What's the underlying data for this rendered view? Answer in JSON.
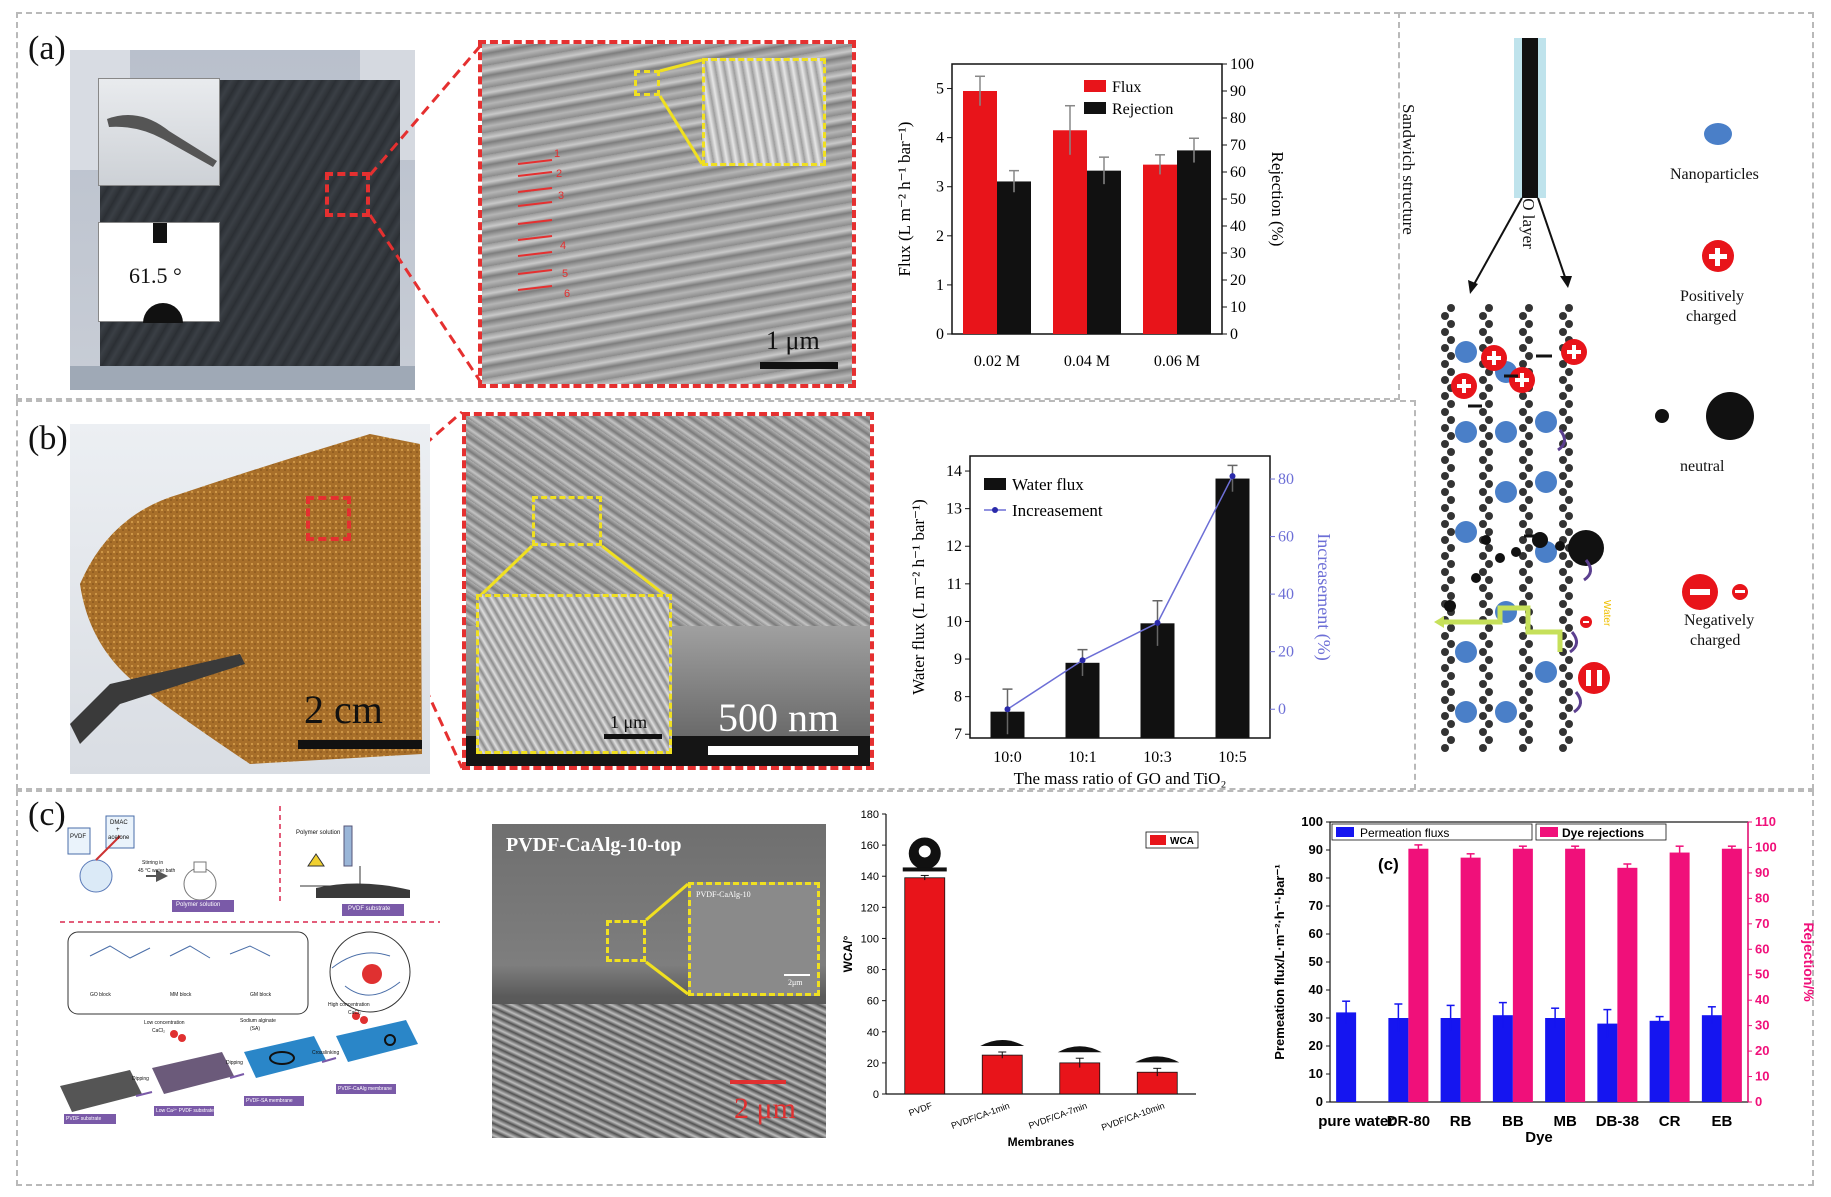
{
  "panels": {
    "a_label": "(a)",
    "b_label": "(b)",
    "c_label": "(c)"
  },
  "panel_a": {
    "contact_angle": "61.5 °",
    "scale_bar": "1 μm",
    "layer_numbers": [
      "1",
      "2",
      "3",
      "4",
      "5",
      "6"
    ]
  },
  "panel_b": {
    "photo_scale": "2 cm",
    "sem_scale": "500 nm",
    "inset_scale": "1 μm"
  },
  "panel_c": {
    "sem_title": "PVDF-CaAlg-10-top",
    "inset_title": "PVDF-CaAlg-10",
    "inset_scale": "2μm",
    "sem_scale": "2 μm",
    "schematic": {
      "pvdf": "PVDF",
      "dmac": "DMAC",
      "plus": "+",
      "acetone": "acetone",
      "stirring": "Stirring in",
      "bath": "45 °C water bath",
      "polymer_solution_label": "Polymer solution",
      "polymer_solution_top": "Polymer solution",
      "pvdf_substrate": "PVDF substrate",
      "go_block": "GO block",
      "mm_block": "MM block",
      "gm_block": "GM block",
      "low_conc": "Low concentration",
      "cacl2": "CaCl₂",
      "dipping": "Dipping",
      "sodium_alginate": "Sodium alginate",
      "sa": "(SA)",
      "dipping2": "Dipping",
      "high_conc": "High concentration",
      "cacl2_2": "CaCl₂",
      "crosslinking": "Crosslinking",
      "stage1": "PVDF substrate",
      "stage2": "Low Ca²⁺ PVDF substrate",
      "stage3": "PVDF-SA membrane",
      "stage4": "PVDF-CaAlg membrane"
    }
  },
  "mechanism": {
    "sandwich": "Sandwich structure",
    "go_layer": "GO layer",
    "nanoparticles": "Nanoparticles",
    "positively": "Positively",
    "positively2": "charged",
    "neutral": "neutral",
    "negatively": "Negatively",
    "negatively2": "charged",
    "water": "Water"
  },
  "colors": {
    "red": "#e8141a",
    "black": "#111111",
    "blue_line": "#6d6fd6",
    "magenta": "#f0107a",
    "blue_bar": "#1515f0",
    "np_blue": "#4a7fc8"
  },
  "chart_data": [
    {
      "id": "a-flux-rejection",
      "type": "bar",
      "categories": [
        "0.02 M",
        "0.04 M",
        "0.06 M"
      ],
      "series": [
        {
          "name": "Flux",
          "axis": "left",
          "values": [
            4.95,
            4.15,
            3.45
          ],
          "errors": [
            0.3,
            0.5,
            0.2
          ]
        },
        {
          "name": "Rejection",
          "axis": "right",
          "values": [
            56.5,
            60.5,
            68
          ],
          "errors": [
            4,
            5,
            4.5
          ]
        }
      ],
      "ylabel": "Flux (L m⁻² h⁻¹ bar⁻¹)",
      "y2label": "Rejection (%)",
      "ylim": [
        0,
        5.5
      ],
      "y2lim": [
        0,
        100
      ],
      "yticks": [
        0,
        1,
        2,
        3,
        4,
        5
      ],
      "y2ticks": [
        0,
        10,
        20,
        30,
        40,
        50,
        60,
        70,
        80,
        90,
        100
      ],
      "legend": "top-right"
    },
    {
      "id": "b-water-flux",
      "type": "bar",
      "categories": [
        "10:0",
        "10:1",
        "10:3",
        "10:5"
      ],
      "series": [
        {
          "name": "Water flux",
          "axis": "left",
          "type": "bar",
          "values": [
            7.6,
            8.9,
            9.95,
            13.8
          ],
          "errors": [
            0.6,
            0.35,
            0.6,
            0.35
          ]
        },
        {
          "name": "Increasement",
          "axis": "right",
          "type": "line",
          "values": [
            0,
            17,
            30,
            81
          ],
          "errors": [
            0,
            3,
            0,
            3
          ]
        }
      ],
      "xlabel": "The mass ratio of GO and TiO₂",
      "ylabel": "Water flux (L m⁻² h⁻¹ bar⁻¹)",
      "y2label": "Increasement (%)",
      "ylim": [
        6.9,
        14.4
      ],
      "y2lim": [
        -10,
        88
      ],
      "yticks": [
        7,
        8,
        9,
        10,
        11,
        12,
        13,
        14
      ],
      "y2ticks": [
        0,
        20,
        40,
        60,
        80
      ],
      "legend": "top-left"
    },
    {
      "id": "c-wca",
      "type": "bar",
      "categories": [
        "PVDF",
        "PVDF/CA-1min",
        "PVDF/CA-7min",
        "PVDF/CA-10min"
      ],
      "series": [
        {
          "name": "WCA",
          "values": [
            139,
            25,
            20,
            14
          ],
          "errors": [
            1.5,
            2,
            3,
            2.5
          ]
        }
      ],
      "xlabel": "Membranes",
      "ylabel": "WCA/°",
      "ylim": [
        0,
        180
      ],
      "yticks": [
        0,
        20,
        40,
        60,
        80,
        100,
        120,
        140,
        160,
        180
      ],
      "legend": "top-right"
    },
    {
      "id": "c-dye",
      "type": "bar",
      "title": "(c)",
      "categories": [
        "pure water",
        "DR-80",
        "RB",
        "BB",
        "MB",
        "DB-38",
        "CR",
        "EB"
      ],
      "series": [
        {
          "name": "Permeation fluxs",
          "axis": "left",
          "values": [
            32,
            30,
            30,
            31,
            30,
            28,
            29,
            31
          ],
          "errors": [
            4,
            5,
            4.5,
            4.5,
            3.5,
            5,
            1.5,
            3
          ]
        },
        {
          "name": "Dye rejections",
          "axis": "right",
          "values": [
            null,
            99.5,
            96,
            99.5,
            99.5,
            92,
            98,
            99.5
          ],
          "errors": [
            0,
            1.5,
            1.5,
            1,
            1,
            1.5,
            2.5,
            1
          ]
        }
      ],
      "xlabel": "Dye",
      "ylabel": "Premeation flux/L·m⁻²·h⁻¹·bar⁻¹",
      "y2label": "Rejection/%",
      "ylim": [
        0,
        100
      ],
      "y2lim": [
        0,
        110
      ],
      "yticks": [
        0,
        10,
        20,
        30,
        40,
        50,
        60,
        70,
        80,
        90,
        100
      ],
      "y2ticks": [
        0,
        10,
        20,
        30,
        40,
        50,
        60,
        70,
        80,
        90,
        100,
        110
      ],
      "legend": "top-left"
    }
  ]
}
